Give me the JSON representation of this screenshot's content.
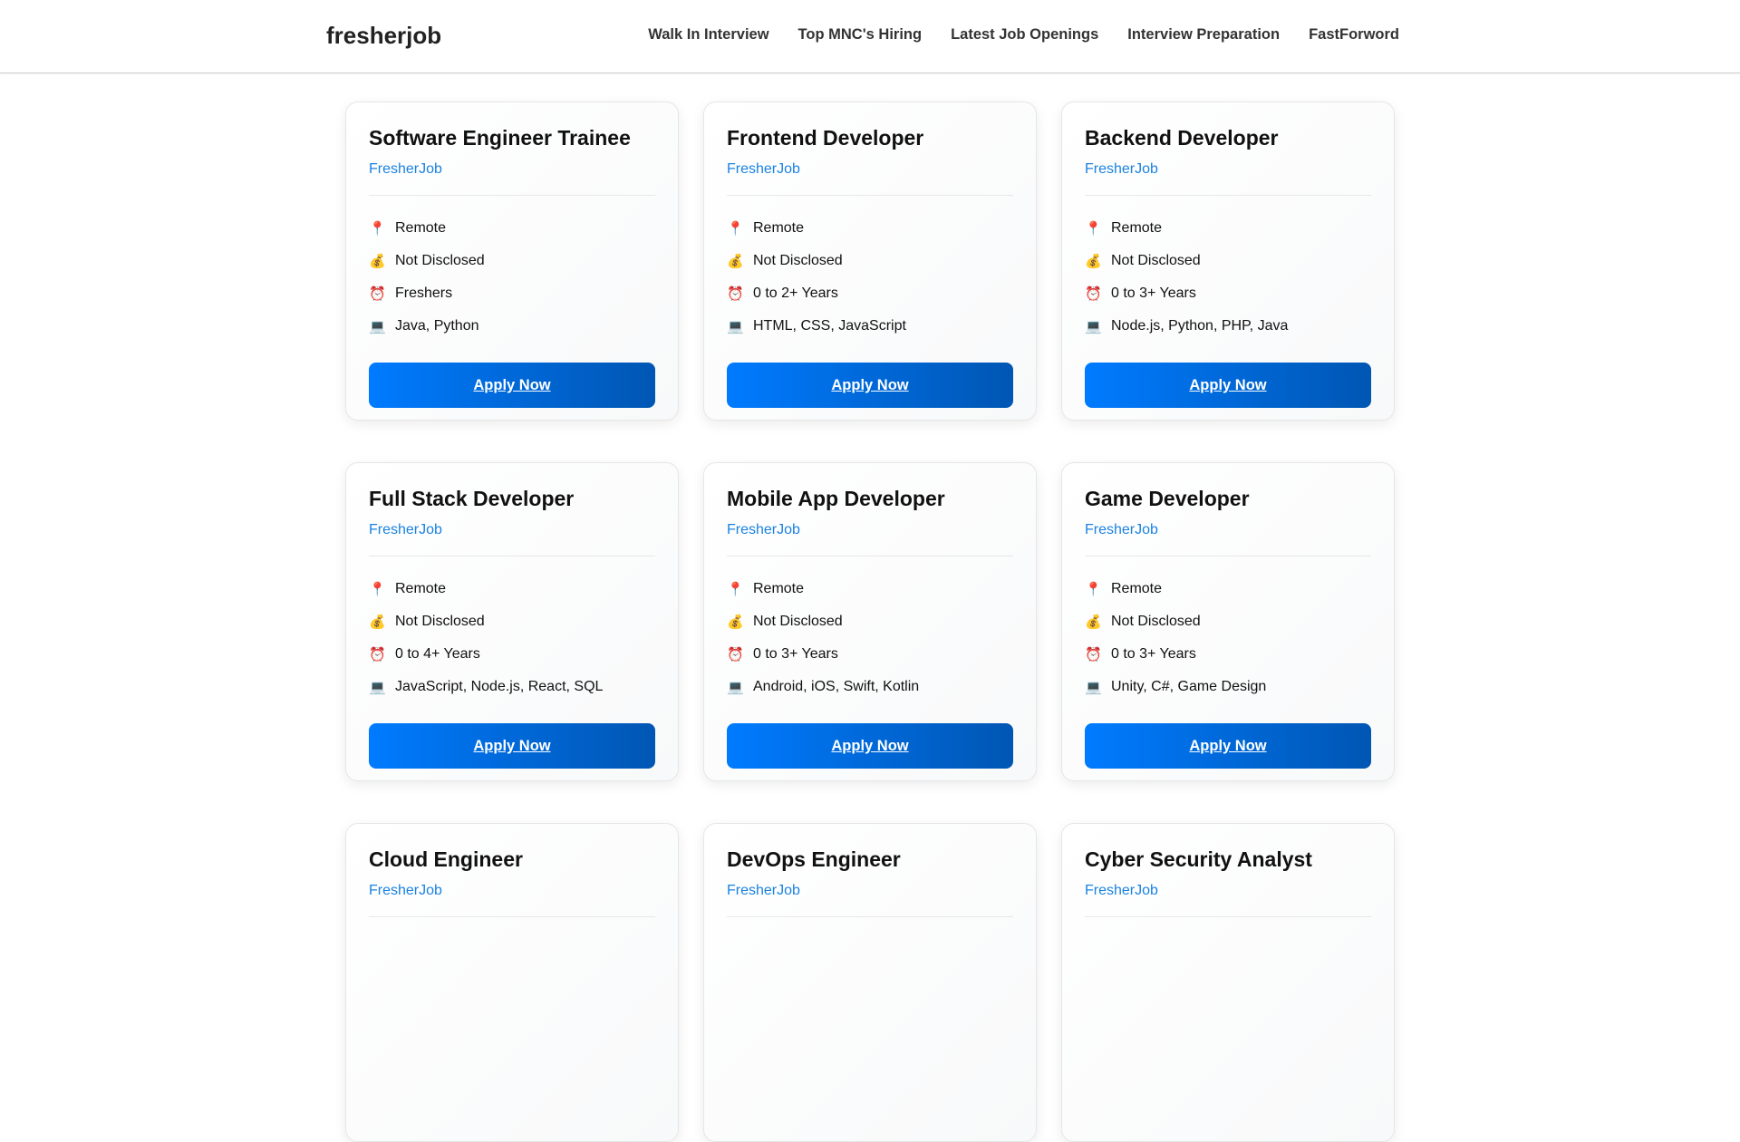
{
  "header": {
    "logo": "fresherjob",
    "nav": [
      "Walk In Interview",
      "Top MNC's Hiring",
      "Latest Job Openings",
      "Interview Preparation",
      "FastForword"
    ]
  },
  "icons": {
    "location": "📍",
    "salary": "💰",
    "experience": "⏰",
    "skills": "💻"
  },
  "apply_label": "Apply Now",
  "jobs": [
    {
      "title": "Software Engineer Trainee",
      "company": "FresherJob",
      "location": "Remote",
      "salary": "Not Disclosed",
      "experience": "Freshers",
      "skills": "Java, Python"
    },
    {
      "title": "Frontend Developer",
      "company": "FresherJob",
      "location": "Remote",
      "salary": "Not Disclosed",
      "experience": "0 to 2+ Years",
      "skills": "HTML, CSS, JavaScript"
    },
    {
      "title": "Backend Developer",
      "company": "FresherJob",
      "location": "Remote",
      "salary": "Not Disclosed",
      "experience": "0 to 3+ Years",
      "skills": "Node.js, Python, PHP, Java"
    },
    {
      "title": "Full Stack Developer",
      "company": "FresherJob",
      "location": "Remote",
      "salary": "Not Disclosed",
      "experience": "0 to 4+ Years",
      "skills": "JavaScript, Node.js, React, SQL"
    },
    {
      "title": "Mobile App Developer",
      "company": "FresherJob",
      "location": "Remote",
      "salary": "Not Disclosed",
      "experience": "0 to 3+ Years",
      "skills": "Android, iOS, Swift, Kotlin"
    },
    {
      "title": "Game Developer",
      "company": "FresherJob",
      "location": "Remote",
      "salary": "Not Disclosed",
      "experience": "0 to 3+ Years",
      "skills": "Unity, C#, Game Design"
    },
    {
      "title": "Cloud Engineer",
      "company": "FresherJob"
    },
    {
      "title": "DevOps Engineer",
      "company": "FresherJob"
    },
    {
      "title": "Cyber Security Analyst",
      "company": "FresherJob"
    }
  ]
}
